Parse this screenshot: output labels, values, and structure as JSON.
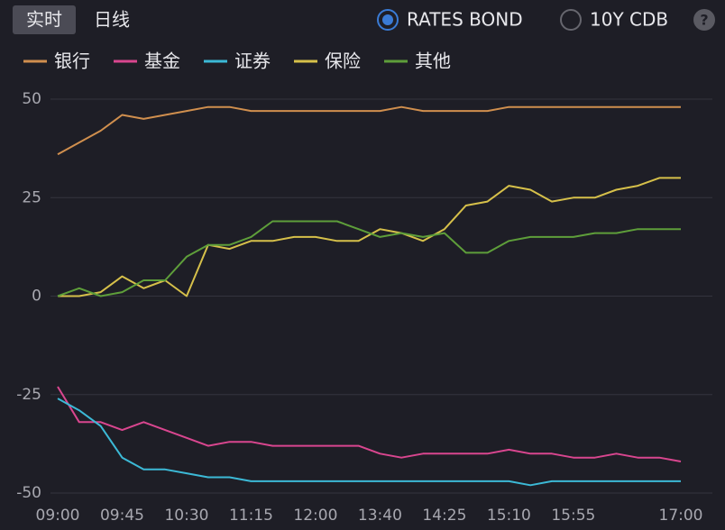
{
  "tabs": [
    "实时",
    "日线"
  ],
  "options": [
    "RATES BOND",
    "10Y CDB"
  ],
  "help": "?",
  "chart_data": {
    "type": "line",
    "categories": [
      "09:00",
      null,
      null,
      "09:45",
      null,
      null,
      "10:30",
      null,
      null,
      "11:15",
      null,
      null,
      "12:00",
      null,
      null,
      "13:40",
      null,
      null,
      "14:25",
      null,
      null,
      "15:10",
      null,
      null,
      "15:55",
      null,
      null,
      null,
      null,
      "17:00"
    ],
    "series": [
      {
        "name": "银行",
        "color": "#d08f4e",
        "values": [
          36,
          39,
          42,
          46,
          45,
          46,
          47,
          48,
          48,
          47,
          47,
          47,
          47,
          47,
          47,
          47,
          48,
          47,
          47,
          47,
          47,
          48,
          48,
          48,
          48,
          48,
          48,
          48,
          48,
          48
        ]
      },
      {
        "name": "基金",
        "color": "#d9468f",
        "values": [
          -23,
          -32,
          -32,
          -34,
          -32,
          -34,
          -36,
          -38,
          -37,
          -37,
          -38,
          -38,
          -38,
          -38,
          -38,
          -40,
          -41,
          -40,
          -40,
          -40,
          -40,
          -39,
          -40,
          -40,
          -41,
          -41,
          -40,
          -41,
          -41,
          -42
        ]
      },
      {
        "name": "证券",
        "color": "#3cb9d6",
        "values": [
          -26,
          -29,
          -33,
          -41,
          -44,
          -44,
          -45,
          -46,
          -46,
          -47,
          -47,
          -47,
          -47,
          -47,
          -47,
          -47,
          -47,
          -47,
          -47,
          -47,
          -47,
          -47,
          -48,
          -47,
          -47,
          -47,
          -47,
          -47,
          -47,
          -47
        ]
      },
      {
        "name": "保险",
        "color": "#d6c04a",
        "values": [
          0,
          0,
          1,
          5,
          2,
          4,
          0,
          13,
          12,
          14,
          14,
          15,
          15,
          14,
          14,
          17,
          16,
          14,
          17,
          23,
          24,
          28,
          27,
          24,
          25,
          25,
          27,
          28,
          30,
          30
        ]
      },
      {
        "name": "其他",
        "color": "#5e9e3a",
        "values": [
          0,
          2,
          0,
          1,
          4,
          4,
          10,
          13,
          13,
          15,
          19,
          19,
          19,
          19,
          17,
          15,
          16,
          15,
          16,
          11,
          11,
          14,
          15,
          15,
          15,
          16,
          16,
          17,
          17,
          17
        ]
      }
    ],
    "ylim": [
      -50,
      50
    ],
    "yticks": [
      -50,
      -25,
      0,
      25,
      50
    ],
    "grid": true
  }
}
